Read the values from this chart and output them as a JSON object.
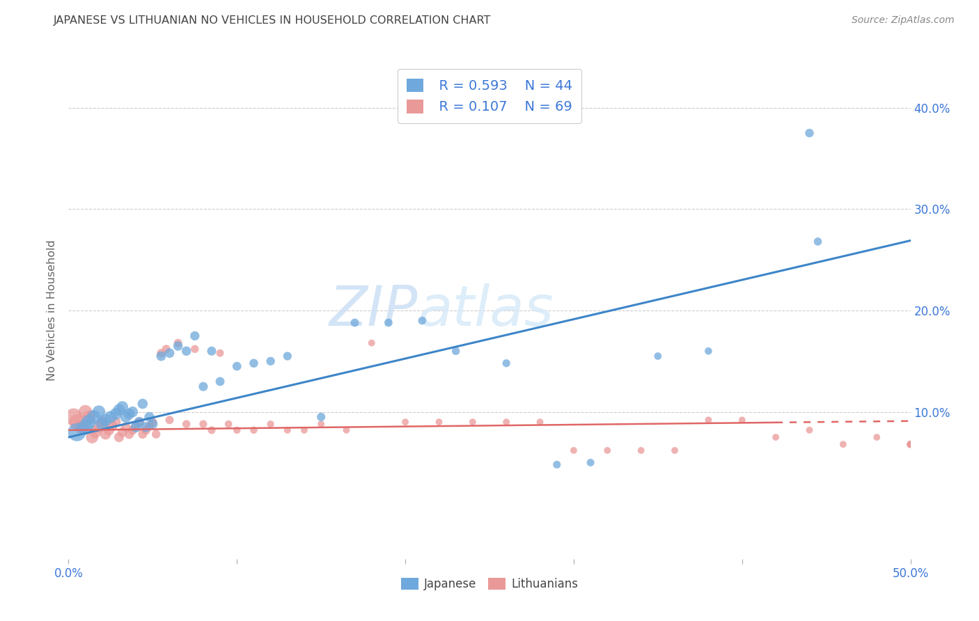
{
  "title": "JAPANESE VS LITHUANIAN NO VEHICLES IN HOUSEHOLD CORRELATION CHART",
  "source": "Source: ZipAtlas.com",
  "ylabel": "No Vehicles in Household",
  "xlim": [
    0.0,
    0.5
  ],
  "ylim": [
    -0.045,
    0.445
  ],
  "watermark_line1": "ZIP",
  "watermark_line2": "atlas",
  "legend_blue_R": "R = 0.593",
  "legend_blue_N": "N = 44",
  "legend_pink_R": "R = 0.107",
  "legend_pink_N": "N = 69",
  "blue_color": "#6fa8dc",
  "pink_color": "#ea9999",
  "blue_line_color": "#3d85c8",
  "pink_line_color": "#e06666",
  "title_color": "#434343",
  "label_color": "#3c78d8",
  "background_color": "#ffffff",
  "grid_color": "#cccccc",
  "blue_slope": 0.388,
  "blue_intercept": 0.075,
  "pink_slope": 0.018,
  "pink_intercept": 0.082,
  "japanese_x": [
    0.005,
    0.01,
    0.012,
    0.015,
    0.018,
    0.02,
    0.022,
    0.025,
    0.028,
    0.03,
    0.032,
    0.034,
    0.036,
    0.038,
    0.04,
    0.042,
    0.044,
    0.046,
    0.048,
    0.05,
    0.055,
    0.06,
    0.065,
    0.07,
    0.075,
    0.08,
    0.085,
    0.09,
    0.1,
    0.11,
    0.12,
    0.13,
    0.15,
    0.17,
    0.19,
    0.21,
    0.23,
    0.26,
    0.29,
    0.31,
    0.35,
    0.38,
    0.44,
    0.445
  ],
  "japanese_y": [
    0.08,
    0.085,
    0.09,
    0.095,
    0.1,
    0.088,
    0.092,
    0.095,
    0.098,
    0.102,
    0.105,
    0.095,
    0.098,
    0.1,
    0.085,
    0.09,
    0.108,
    0.085,
    0.095,
    0.088,
    0.155,
    0.158,
    0.165,
    0.16,
    0.175,
    0.125,
    0.16,
    0.13,
    0.145,
    0.148,
    0.15,
    0.155,
    0.095,
    0.188,
    0.188,
    0.19,
    0.16,
    0.148,
    0.048,
    0.05,
    0.155,
    0.16,
    0.375,
    0.268
  ],
  "japanese_sizes": [
    350,
    250,
    220,
    200,
    180,
    170,
    160,
    155,
    150,
    145,
    140,
    135,
    130,
    125,
    120,
    115,
    110,
    108,
    106,
    104,
    100,
    98,
    96,
    94,
    92,
    90,
    88,
    86,
    84,
    82,
    80,
    78,
    76,
    74,
    72,
    70,
    68,
    66,
    64,
    62,
    60,
    58,
    80,
    70
  ],
  "lithuanian_x": [
    0.003,
    0.005,
    0.008,
    0.01,
    0.012,
    0.014,
    0.016,
    0.018,
    0.02,
    0.022,
    0.024,
    0.026,
    0.028,
    0.03,
    0.032,
    0.034,
    0.036,
    0.038,
    0.04,
    0.042,
    0.044,
    0.046,
    0.048,
    0.05,
    0.052,
    0.055,
    0.058,
    0.06,
    0.065,
    0.07,
    0.075,
    0.08,
    0.085,
    0.09,
    0.095,
    0.1,
    0.11,
    0.12,
    0.13,
    0.14,
    0.15,
    0.165,
    0.18,
    0.2,
    0.22,
    0.24,
    0.26,
    0.28,
    0.3,
    0.32,
    0.34,
    0.36,
    0.38,
    0.4,
    0.42,
    0.44,
    0.46,
    0.48,
    0.5,
    0.5,
    0.5,
    0.5,
    0.5,
    0.5,
    0.5,
    0.5,
    0.5,
    0.5,
    0.5
  ],
  "lithuanian_y": [
    0.095,
    0.09,
    0.085,
    0.1,
    0.095,
    0.075,
    0.08,
    0.085,
    0.09,
    0.078,
    0.082,
    0.086,
    0.09,
    0.075,
    0.08,
    0.085,
    0.078,
    0.082,
    0.086,
    0.09,
    0.078,
    0.082,
    0.086,
    0.09,
    0.078,
    0.158,
    0.162,
    0.092,
    0.168,
    0.088,
    0.162,
    0.088,
    0.082,
    0.158,
    0.088,
    0.082,
    0.082,
    0.088,
    0.082,
    0.082,
    0.088,
    0.082,
    0.168,
    0.09,
    0.09,
    0.09,
    0.09,
    0.09,
    0.062,
    0.062,
    0.062,
    0.062,
    0.092,
    0.092,
    0.075,
    0.082,
    0.068,
    0.075,
    0.068,
    0.068,
    0.068,
    0.068,
    0.068,
    0.068,
    0.068,
    0.068,
    0.068,
    0.068,
    0.068
  ],
  "lithuanian_sizes": [
    320,
    260,
    220,
    200,
    180,
    160,
    150,
    140,
    130,
    125,
    120,
    115,
    110,
    105,
    100,
    98,
    96,
    94,
    92,
    90,
    88,
    86,
    84,
    82,
    80,
    78,
    76,
    74,
    72,
    70,
    68,
    66,
    64,
    62,
    60,
    58,
    56,
    54,
    52,
    50,
    50,
    50,
    50,
    50,
    50,
    50,
    50,
    50,
    50,
    50,
    50,
    50,
    50,
    50,
    50,
    50,
    50,
    50,
    50,
    50,
    50,
    50,
    50,
    50,
    50,
    50,
    50,
    50,
    50
  ]
}
